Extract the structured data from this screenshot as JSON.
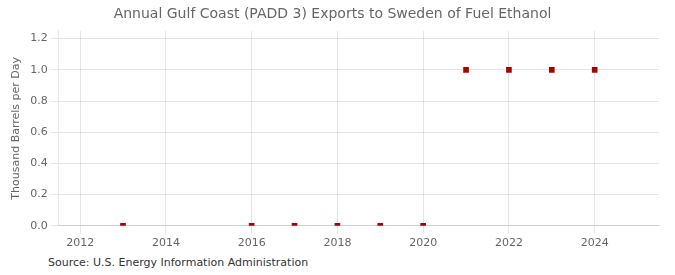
{
  "chart_data": {
    "type": "scatter",
    "title": "Annual Gulf Coast (PADD 3) Exports to Sweden of Fuel Ethanol",
    "ylabel": "Thousand Barrels per Day",
    "annotation": "Source: U.S. Energy Information Administration",
    "x": [
      2013,
      2016,
      2017,
      2018,
      2019,
      2020,
      2021,
      2022,
      2023,
      2024
    ],
    "values": [
      0.0,
      0.0,
      0.0,
      0.0,
      0.0,
      0.0,
      1.0,
      1.0,
      1.0,
      1.0
    ],
    "color": "#AA0000",
    "marker": "square",
    "xlim": [
      2011.5,
      2025.5
    ],
    "ylim": [
      0.0,
      1.25
    ],
    "xticks": [
      2012,
      2014,
      2016,
      2018,
      2020,
      2022,
      2024
    ],
    "yticks": [
      {
        "value": 0,
        "label": "0.0"
      },
      0.2,
      0.4,
      0.6,
      0.8,
      {
        "value": 1,
        "label": "1.0"
      },
      1.2
    ],
    "grid": true
  }
}
